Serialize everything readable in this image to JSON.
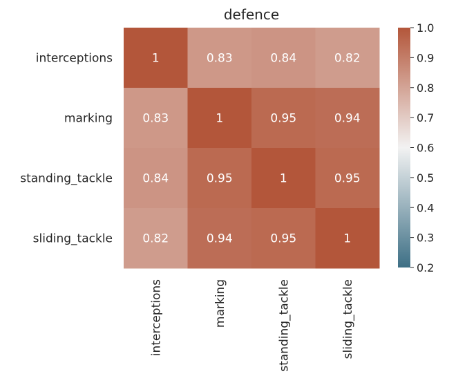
{
  "chart_data": {
    "type": "heatmap",
    "title": "defence",
    "row_labels": [
      "interceptions",
      "marking",
      "standing_tackle",
      "sliding_tackle"
    ],
    "col_labels": [
      "interceptions",
      "marking",
      "standing_tackle",
      "sliding_tackle"
    ],
    "values": [
      [
        1,
        0.83,
        0.84,
        0.82
      ],
      [
        0.83,
        1,
        0.95,
        0.94
      ],
      [
        0.84,
        0.95,
        1,
        0.95
      ],
      [
        0.82,
        0.94,
        0.95,
        1
      ]
    ],
    "annotations": [
      [
        "1",
        "0.83",
        "0.84",
        "0.82"
      ],
      [
        "0.83",
        "1",
        "0.95",
        "0.94"
      ],
      [
        "0.84",
        "0.95",
        "1",
        "0.95"
      ],
      [
        "0.82",
        "0.94",
        "0.95",
        "1"
      ]
    ],
    "colorbar": {
      "range": [
        0.2,
        1.0
      ],
      "ticks": [
        "0.2",
        "0.3",
        "0.4",
        "0.5",
        "0.6",
        "0.7",
        "0.8",
        "0.9",
        "1.0"
      ],
      "colors": {
        "low": "#3d6f85",
        "mid": "#f2f2f2",
        "high": "#b3563a"
      }
    }
  }
}
